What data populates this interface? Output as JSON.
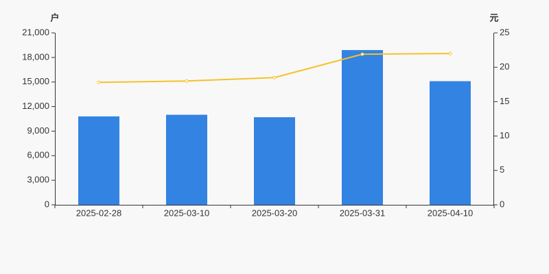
{
  "chart_data": {
    "type": "bar_line",
    "y_label": "户",
    "y2_label": "元",
    "categories": [
      "2025-02-28",
      "2025-03-10",
      "2025-03-20",
      "2025-03-31",
      "2025-04-10"
    ],
    "series": [
      {
        "type": "bar",
        "color": "#3383e2",
        "values": [
          10800,
          11000,
          10700,
          18900,
          15100
        ]
      },
      {
        "type": "line",
        "axis": "y2",
        "color": "#f4c226",
        "values": [
          17.8,
          18.0,
          18.5,
          21.9,
          22.0
        ]
      }
    ],
    "ylim": [
      0,
      21000
    ],
    "yticks": [
      0,
      {
        "value": 3000,
        "label": "3,000"
      },
      {
        "value": 6000,
        "label": "6,000"
      },
      {
        "value": 9000,
        "label": "9,000"
      },
      {
        "value": 12000,
        "label": "12,000"
      },
      {
        "value": 15000,
        "label": "15,000"
      },
      {
        "value": 18000,
        "label": "18,000"
      },
      {
        "value": 21000,
        "label": "21,000"
      }
    ],
    "y2lim": [
      0,
      25
    ],
    "y2ticks": [
      0,
      5,
      10,
      15,
      20,
      25
    ]
  }
}
